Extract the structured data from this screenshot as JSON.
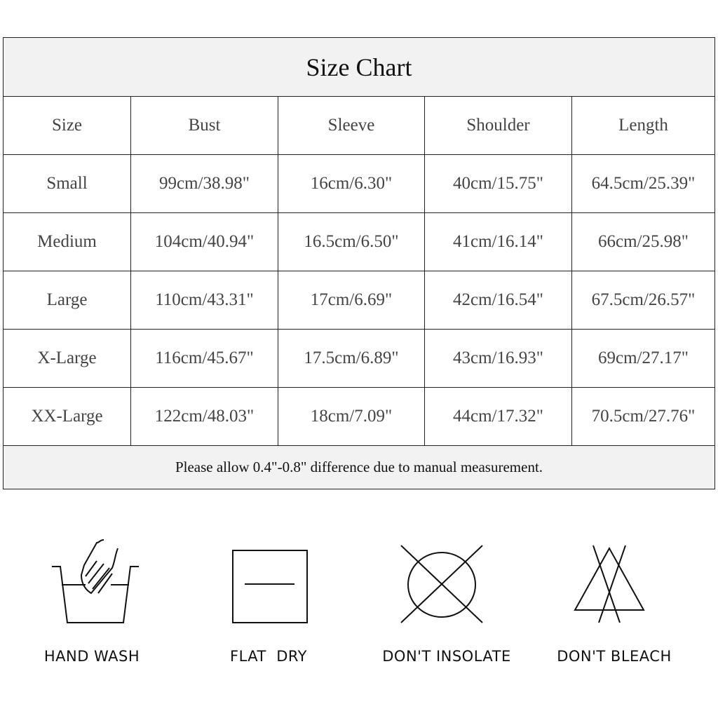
{
  "title": "Size Chart",
  "columns": [
    "Size",
    "Bust",
    "Sleeve",
    "Shoulder",
    "Length"
  ],
  "rows": [
    [
      "Small",
      "99cm/38.98\"",
      "16cm/6.30\"",
      "40cm/15.75\"",
      "64.5cm/25.39\""
    ],
    [
      "Medium",
      "104cm/40.94\"",
      "16.5cm/6.50\"",
      "41cm/16.14\"",
      "66cm/25.98\""
    ],
    [
      "Large",
      "110cm/43.31\"",
      "17cm/6.69\"",
      "42cm/16.54\"",
      "67.5cm/26.57\""
    ],
    [
      "X-Large",
      "116cm/45.67\"",
      "17.5cm/6.89\"",
      "43cm/16.93\"",
      "69cm/27.17\""
    ],
    [
      "XX-Large",
      "122cm/48.03\"",
      "18cm/7.09\"",
      "44cm/17.32\"",
      "70.5cm/27.76\""
    ]
  ],
  "note": "Please allow 0.4\"-0.8\" difference due to manual measurement.",
  "care": [
    {
      "icon": "hand-wash-icon",
      "label": "HAND WASH"
    },
    {
      "icon": "flat-dry-icon",
      "label": "FLAT  DRY"
    },
    {
      "icon": "do-not-tumble-icon",
      "label": "DON'T INSOLATE"
    },
    {
      "icon": "do-not-bleach-icon",
      "label": "DON'T BLEACH"
    }
  ]
}
